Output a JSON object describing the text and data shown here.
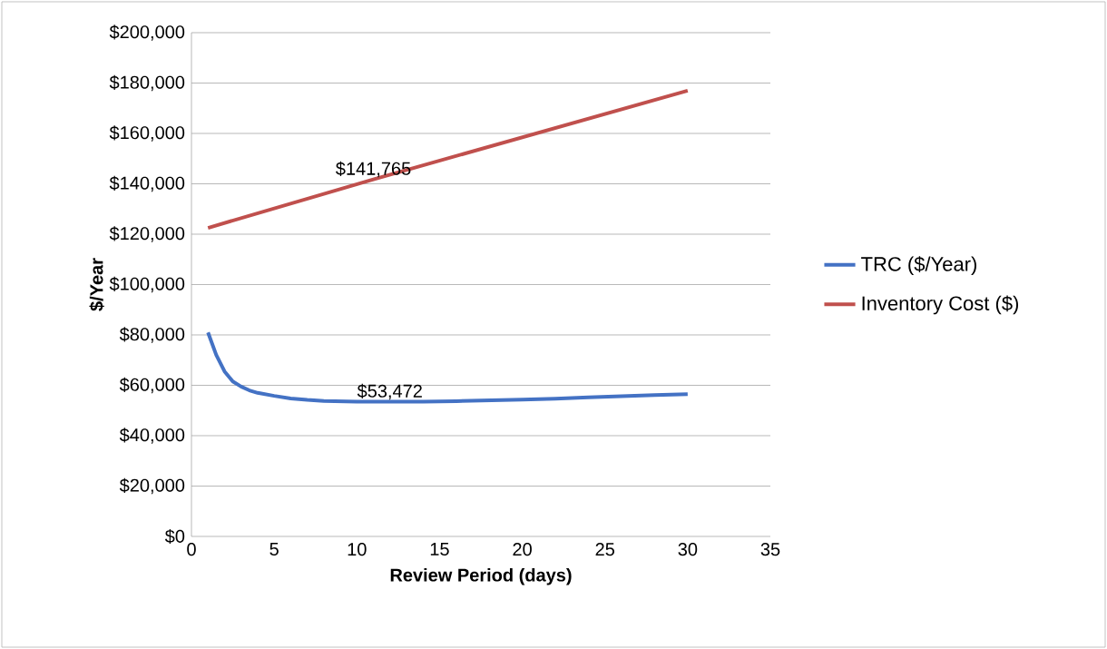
{
  "chart_data": {
    "type": "line",
    "xlabel": "Review Period (days)",
    "ylabel": "$/Year",
    "xlim": [
      0,
      35
    ],
    "xticks": [
      0,
      5,
      10,
      15,
      20,
      25,
      30,
      35
    ],
    "ylim": [
      0,
      200000
    ],
    "yticks": [
      {
        "value": 0,
        "label": "$0"
      },
      {
        "value": 20000,
        "label": "$20,000"
      },
      {
        "value": 40000,
        "label": "$40,000"
      },
      {
        "value": 60000,
        "label": "$60,000"
      },
      {
        "value": 80000,
        "label": "$80,000"
      },
      {
        "value": 100000,
        "label": "$100,000"
      },
      {
        "value": 120000,
        "label": "$120,000"
      },
      {
        "value": 140000,
        "label": "$140,000"
      },
      {
        "value": 160000,
        "label": "$160,000"
      },
      {
        "value": 180000,
        "label": "$180,000"
      },
      {
        "value": 200000,
        "label": "$200,000"
      }
    ],
    "grid": "y",
    "legend": "right",
    "marker": "none",
    "line_style": "solid",
    "series": [
      {
        "name": "TRC ($/Year)",
        "color": "#4472c4",
        "x": [
          1,
          1.5,
          2,
          2.5,
          3,
          3.5,
          4,
          5,
          6,
          7,
          8,
          10,
          12,
          14,
          16,
          18,
          20,
          22,
          24,
          26,
          28,
          30
        ],
        "values": [
          81000,
          72000,
          65500,
          61500,
          59500,
          58000,
          57000,
          55800,
          54800,
          54200,
          53800,
          53500,
          53472,
          53500,
          53700,
          54000,
          54300,
          54700,
          55200,
          55700,
          56100,
          56500
        ]
      },
      {
        "name": "Inventory Cost ($)",
        "color": "#c0504d",
        "x": [
          1,
          11,
          30
        ],
        "values": [
          122500,
          141765,
          177000
        ]
      }
    ],
    "annotations": [
      {
        "text": "$141,765",
        "x": 11,
        "y": 141765
      },
      {
        "text": "$53,472",
        "x": 12,
        "y": 53472
      }
    ]
  }
}
